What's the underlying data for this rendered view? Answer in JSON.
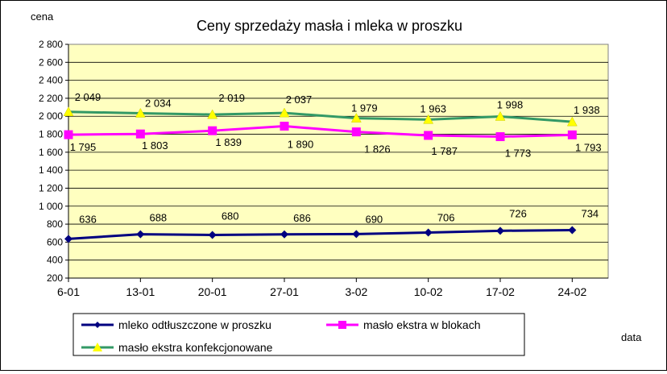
{
  "chart_data": {
    "type": "line",
    "title": "Ceny sprzedaży masła i mleka w proszku",
    "ylabel": "cena",
    "xlabel": "data",
    "categories": [
      "6-01",
      "13-01",
      "20-01",
      "27-01",
      "3-02",
      "10-02",
      "17-02",
      "24-02"
    ],
    "ylim": [
      200,
      2800
    ],
    "ytick_step": 200,
    "yticks": [
      "200",
      "400",
      "600",
      "800",
      "1 000",
      "1 200",
      "1 400",
      "1 600",
      "1 800",
      "2 000",
      "2 200",
      "2 400",
      "2 600",
      "2 800"
    ],
    "grid": true,
    "plot_background": "#FFFFC0",
    "legend_position": "bottom",
    "series": [
      {
        "name": "mleko odtłuszczone w proszku",
        "color": "#000080",
        "marker": "diamond",
        "values": [
          636,
          688,
          680,
          686,
          690,
          706,
          726,
          734
        ],
        "labels": [
          "636",
          "688",
          "680",
          "686",
          "690",
          "706",
          "726",
          "734"
        ]
      },
      {
        "name": "masło ekstra w blokach",
        "color": "#FF00FF",
        "marker": "square",
        "values": [
          1795,
          1803,
          1839,
          1890,
          1826,
          1787,
          1773,
          1793
        ],
        "labels": [
          "1 795",
          "1 803",
          "1 839",
          "1 890",
          "1 826",
          "1 787",
          "1 773",
          "1 793"
        ]
      },
      {
        "name": "masło ekstra konfekcjonowane",
        "color": "#339966",
        "marker": "triangle",
        "marker_color": "#FFFF00",
        "values": [
          2049,
          2034,
          2019,
          2037,
          1979,
          1963,
          1998,
          1938
        ],
        "labels": [
          "2 049",
          "2 034",
          "2 019",
          "2 037",
          "1 979",
          "1 963",
          "1 998",
          "1 938"
        ]
      }
    ]
  }
}
